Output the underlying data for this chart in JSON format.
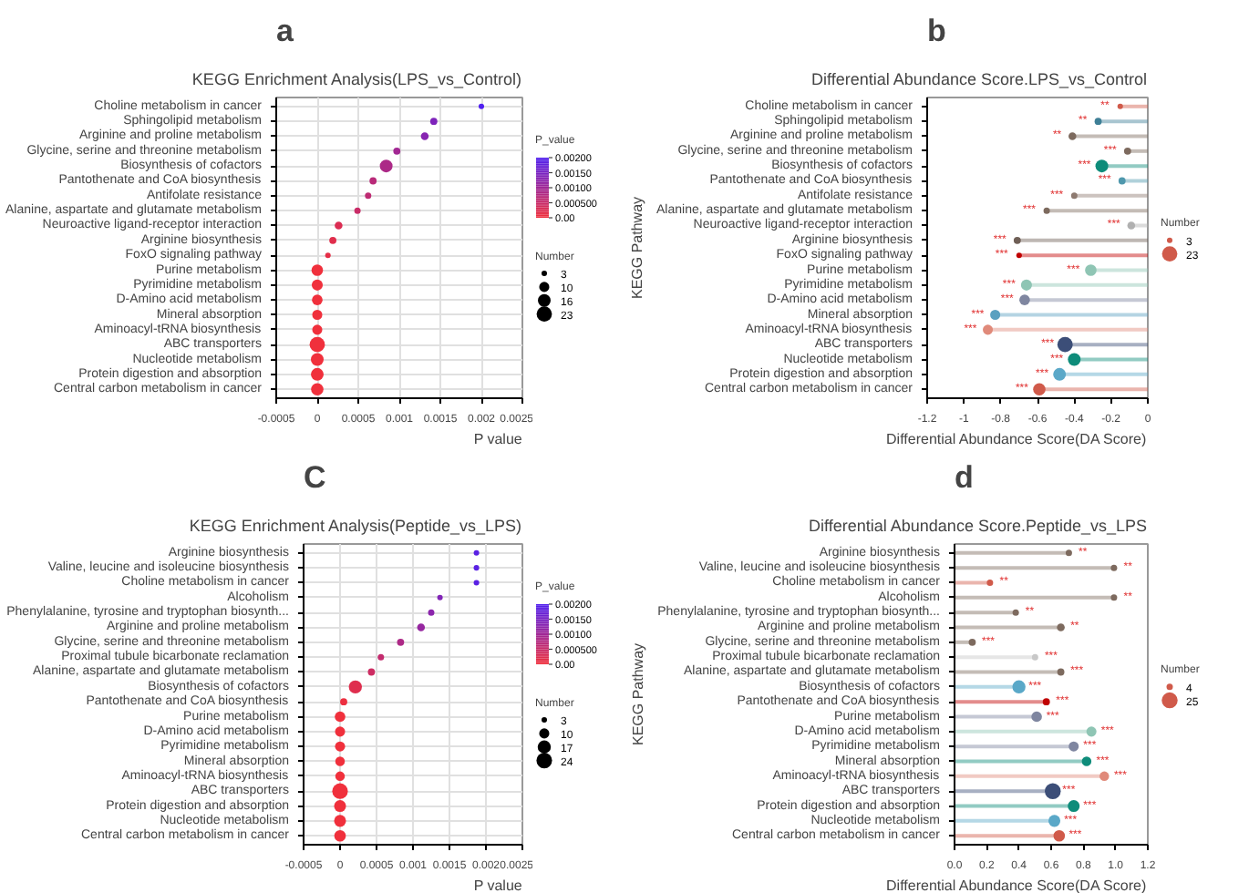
{
  "chart_data": [
    {
      "type": "bubble",
      "orientation": "horizontal",
      "annotations": [
        "a"
      ],
      "title": "KEGG Enrichment Analysis(LPS_vs_Control)",
      "xlabel": "P value",
      "clabel": "P_value",
      "legend_title": "Number",
      "grid": true,
      "categories": [
        "Choline metabolism in cancer",
        "Sphingolipid metabolism",
        "Arginine and proline metabolism",
        "Glycine, serine and threonine metabolism",
        "Biosynthesis of cofactors",
        "Pantothenate and CoA biosynthesis",
        "Antifolate resistance",
        "Alanine, aspartate and glutamate metabolism",
        "Neuroactive ligand-receptor interaction",
        "Arginine biosynthesis",
        "FoxO signaling pathway",
        "Purine metabolism",
        "Pyrimidine metabolism",
        "D-Amino acid metabolism",
        "Mineral absorption",
        "Aminoacyl-tRNA biosynthesis",
        "ABC transporters",
        "Nucleotide metabolism",
        "Protein digestion and absorption",
        "Central carbon metabolism in cancer"
      ],
      "values": [
        0.002,
        0.00142,
        0.00131,
        0.00097,
        0.00084,
        0.00068,
        0.00062,
        0.00049,
        0.00026,
        0.00019,
        0.00013,
        0,
        0,
        0,
        0,
        0,
        0,
        0,
        0,
        0
      ],
      "cvalues": [
        0.002,
        0.00142,
        0.00131,
        0.00097,
        0.00084,
        0.00068,
        0.00062,
        0.00049,
        0.00026,
        0.00019,
        0.00013,
        0,
        0,
        0,
        0,
        0,
        0,
        0,
        0,
        0
      ],
      "sizes": [
        3,
        5,
        6,
        5,
        16,
        5,
        4,
        4,
        6,
        5,
        3,
        13,
        12,
        11,
        10,
        10,
        23,
        16,
        16,
        15
      ],
      "size_legend": [
        3,
        10,
        16,
        23
      ],
      "xlim": [
        -0.0005,
        0.0025
      ],
      "xticks": [
        -0.0005,
        0,
        0.0005,
        0.001,
        0.0015,
        0.002,
        0.0025
      ],
      "clim": [
        0,
        0.002
      ],
      "cticks": [
        {
          "value": 0.002,
          "label": "0.00200"
        },
        {
          "value": 0.0015,
          "label": "0.00150"
        },
        {
          "value": 0.001,
          "label": "0.00100"
        },
        {
          "value": 0.0005,
          "label": "0.000500"
        },
        {
          "value": 0,
          "label": "0.00"
        }
      ]
    },
    {
      "type": "lollipop",
      "orientation": "horizontal",
      "annotations": [
        "b"
      ],
      "title": "Differential Abundance Score.LPS_vs_Control",
      "xlabel": "Differential Abundance Score(DA Score)",
      "ylabel": "KEGG Pathway",
      "legend_title": "Number",
      "categories": [
        "Choline metabolism in cancer",
        "Sphingolipid metabolism",
        "Arginine and proline metabolism",
        "Glycine, serine and threonine metabolism",
        "Biosynthesis of cofactors",
        "Pantothenate and CoA biosynthesis",
        "Antifolate resistance",
        "Alanine, aspartate and glutamate metabolism",
        "Neuroactive ligand-receptor interaction",
        "Arginine biosynthesis",
        "FoxO signaling pathway",
        "Purine metabolism",
        "Pyrimidine metabolism",
        "D-Amino acid metabolism",
        "Mineral absorption",
        "Aminoacyl-tRNA biosynthesis",
        "ABC transporters",
        "Nucleotide metabolism",
        "Protein digestion and absorption",
        "Central carbon metabolism in cancer"
      ],
      "values": [
        -0.15,
        -0.27,
        -0.41,
        -0.11,
        -0.25,
        -0.14,
        -0.4,
        -0.55,
        -0.09,
        -0.71,
        -0.7,
        -0.31,
        -0.66,
        -0.67,
        -0.83,
        -0.87,
        -0.45,
        -0.4,
        -0.48,
        -0.59
      ],
      "colors": [
        "#d05a4a",
        "#3e7f96",
        "#7d6a5e",
        "#7d6a5e",
        "#0e8c7a",
        "#4f98ad",
        "#8d7a70",
        "#7d6a5e",
        "#b0b0b0",
        "#6f5f56",
        "#c00000",
        "#8fc5b4",
        "#8fc5b4",
        "#7f86a0",
        "#5aa0c0",
        "#e08a7a",
        "#3c4e78",
        "#0e8c7a",
        "#5aa8c8",
        "#d05a4a"
      ],
      "sizes": [
        3,
        5,
        6,
        5,
        16,
        5,
        4,
        4,
        6,
        5,
        3,
        13,
        12,
        11,
        10,
        10,
        23,
        16,
        16,
        15
      ],
      "size_legend": [
        3,
        23
      ],
      "value_labels": [
        "**",
        "**",
        "**",
        "***",
        "***",
        "***",
        "***",
        "***",
        "***",
        "***",
        "***",
        "***",
        "***",
        "***",
        "***",
        "***",
        "***",
        "***",
        "***",
        "***"
      ],
      "xlim": [
        -1.2,
        0
      ],
      "xticks": [
        -1.2,
        -1,
        -0.8,
        -0.6,
        -0.4,
        -0.2,
        0
      ]
    },
    {
      "type": "bubble",
      "orientation": "horizontal",
      "annotations": [
        "C"
      ],
      "title": "KEGG Enrichment Analysis(Peptide_vs_LPS)",
      "xlabel": "P value",
      "clabel": "P_value",
      "legend_title": "Number",
      "grid": true,
      "categories": [
        "Arginine biosynthesis",
        "Valine, leucine and isoleucine biosynthesis",
        "Choline metabolism in cancer",
        "Alcoholism",
        "Phenylalanine, tyrosine and tryptophan biosynth...",
        "Arginine and proline metabolism",
        "Glycine, serine and threonine metabolism",
        "Proximal tubule bicarbonate reclamation",
        "Alanine, aspartate and glutamate metabolism",
        "Biosynthesis of cofactors",
        "Pantothenate and CoA biosynthesis",
        "Purine metabolism",
        "D-Amino acid metabolism",
        "Pyrimidine metabolism",
        "Mineral absorption",
        "Aminoacyl-tRNA biosynthesis",
        "ABC transporters",
        "Protein digestion and absorption",
        "Nucleotide metabolism",
        "Central carbon metabolism in cancer"
      ],
      "values": [
        0.00187,
        0.00187,
        0.00187,
        0.00137,
        0.00125,
        0.00111,
        0.00083,
        0.00056,
        0.00043,
        0.00021,
        5e-05,
        0,
        0,
        0,
        0,
        0,
        0,
        0,
        0,
        0
      ],
      "cvalues": [
        0.00187,
        0.00187,
        0.00187,
        0.00137,
        0.00125,
        0.00111,
        0.00083,
        0.00056,
        0.00043,
        0.00021,
        5e-05,
        0,
        0,
        0,
        0,
        0,
        0,
        0,
        0,
        0
      ],
      "sizes": [
        3,
        3,
        3,
        3,
        4,
        6,
        5,
        4,
        5,
        17,
        5,
        11,
        10,
        10,
        9,
        9,
        24,
        14,
        14,
        13
      ],
      "size_legend": [
        3,
        10,
        17,
        24
      ],
      "xlim": [
        -0.0005,
        0.0025
      ],
      "xticks": [
        -0.0005,
        0,
        0.0005,
        0.001,
        0.0015,
        0.002,
        0.0025
      ],
      "clim": [
        0,
        0.002
      ],
      "cticks": [
        {
          "value": 0.002,
          "label": "0.00200"
        },
        {
          "value": 0.0015,
          "label": "0.00150"
        },
        {
          "value": 0.001,
          "label": "0.00100"
        },
        {
          "value": 0.0005,
          "label": "0.000500"
        },
        {
          "value": 0,
          "label": "0.00"
        }
      ]
    },
    {
      "type": "lollipop",
      "orientation": "horizontal",
      "annotations": [
        "d"
      ],
      "title": "Differential Abundance Score.Peptide_vs_LPS",
      "xlabel": "Differential Abundance Score(DA Score)",
      "ylabel": "KEGG Pathway",
      "legend_title": "Number",
      "categories": [
        "Arginine biosynthesis",
        "Valine, leucine and isoleucine biosynthesis",
        "Choline metabolism in cancer",
        "Alcoholism",
        "Phenylalanine, tyrosine and tryptophan biosynth...",
        "Arginine and proline metabolism",
        "Glycine, serine and threonine metabolism",
        "Proximal tubule bicarbonate reclamation",
        "Alanine, aspartate and glutamate metabolism",
        "Biosynthesis of cofactors",
        "Pantothenate and CoA biosynthesis",
        "Purine metabolism",
        "D-Amino acid metabolism",
        "Pyrimidine metabolism",
        "Mineral absorption",
        "Aminoacyl-tRNA biosynthesis",
        "ABC transporters",
        "Protein digestion and absorption",
        "Nucleotide metabolism",
        "Central carbon metabolism in cancer"
      ],
      "values": [
        0.71,
        0.99,
        0.22,
        0.99,
        0.38,
        0.66,
        0.11,
        0.5,
        0.66,
        0.4,
        0.57,
        0.51,
        0.85,
        0.74,
        0.82,
        0.93,
        0.61,
        0.74,
        0.62,
        0.65
      ],
      "colors": [
        "#7d6a5e",
        "#7d6a5e",
        "#d05a4a",
        "#7d6a5e",
        "#7d6a5e",
        "#7d6a5e",
        "#7d6a5e",
        "#c8c8c8",
        "#7d6a5e",
        "#5aa8c8",
        "#c00000",
        "#7f86a0",
        "#8fc5b4",
        "#7f86a0",
        "#0e8c7a",
        "#e08a7a",
        "#3c4e78",
        "#0e8c7a",
        "#5aa8c8",
        "#d05a4a"
      ],
      "sizes": [
        4,
        4,
        4,
        4,
        4,
        6,
        5,
        4,
        5,
        17,
        5,
        11,
        10,
        10,
        9,
        9,
        25,
        14,
        14,
        13
      ],
      "size_legend": [
        4,
        25
      ],
      "value_labels": [
        "**",
        "**",
        "**",
        "**",
        "**",
        "**",
        "***",
        "***",
        "***",
        "***",
        "***",
        "***",
        "***",
        "***",
        "***",
        "***",
        "***",
        "***",
        "***",
        "***"
      ],
      "xlim": [
        0,
        1.2
      ],
      "xticks": [
        {
          "value": 0,
          "label": "0.0"
        },
        0.2,
        0.4,
        0.6,
        0.8,
        {
          "value": 1,
          "label": "1.0"
        },
        1.2
      ]
    }
  ]
}
